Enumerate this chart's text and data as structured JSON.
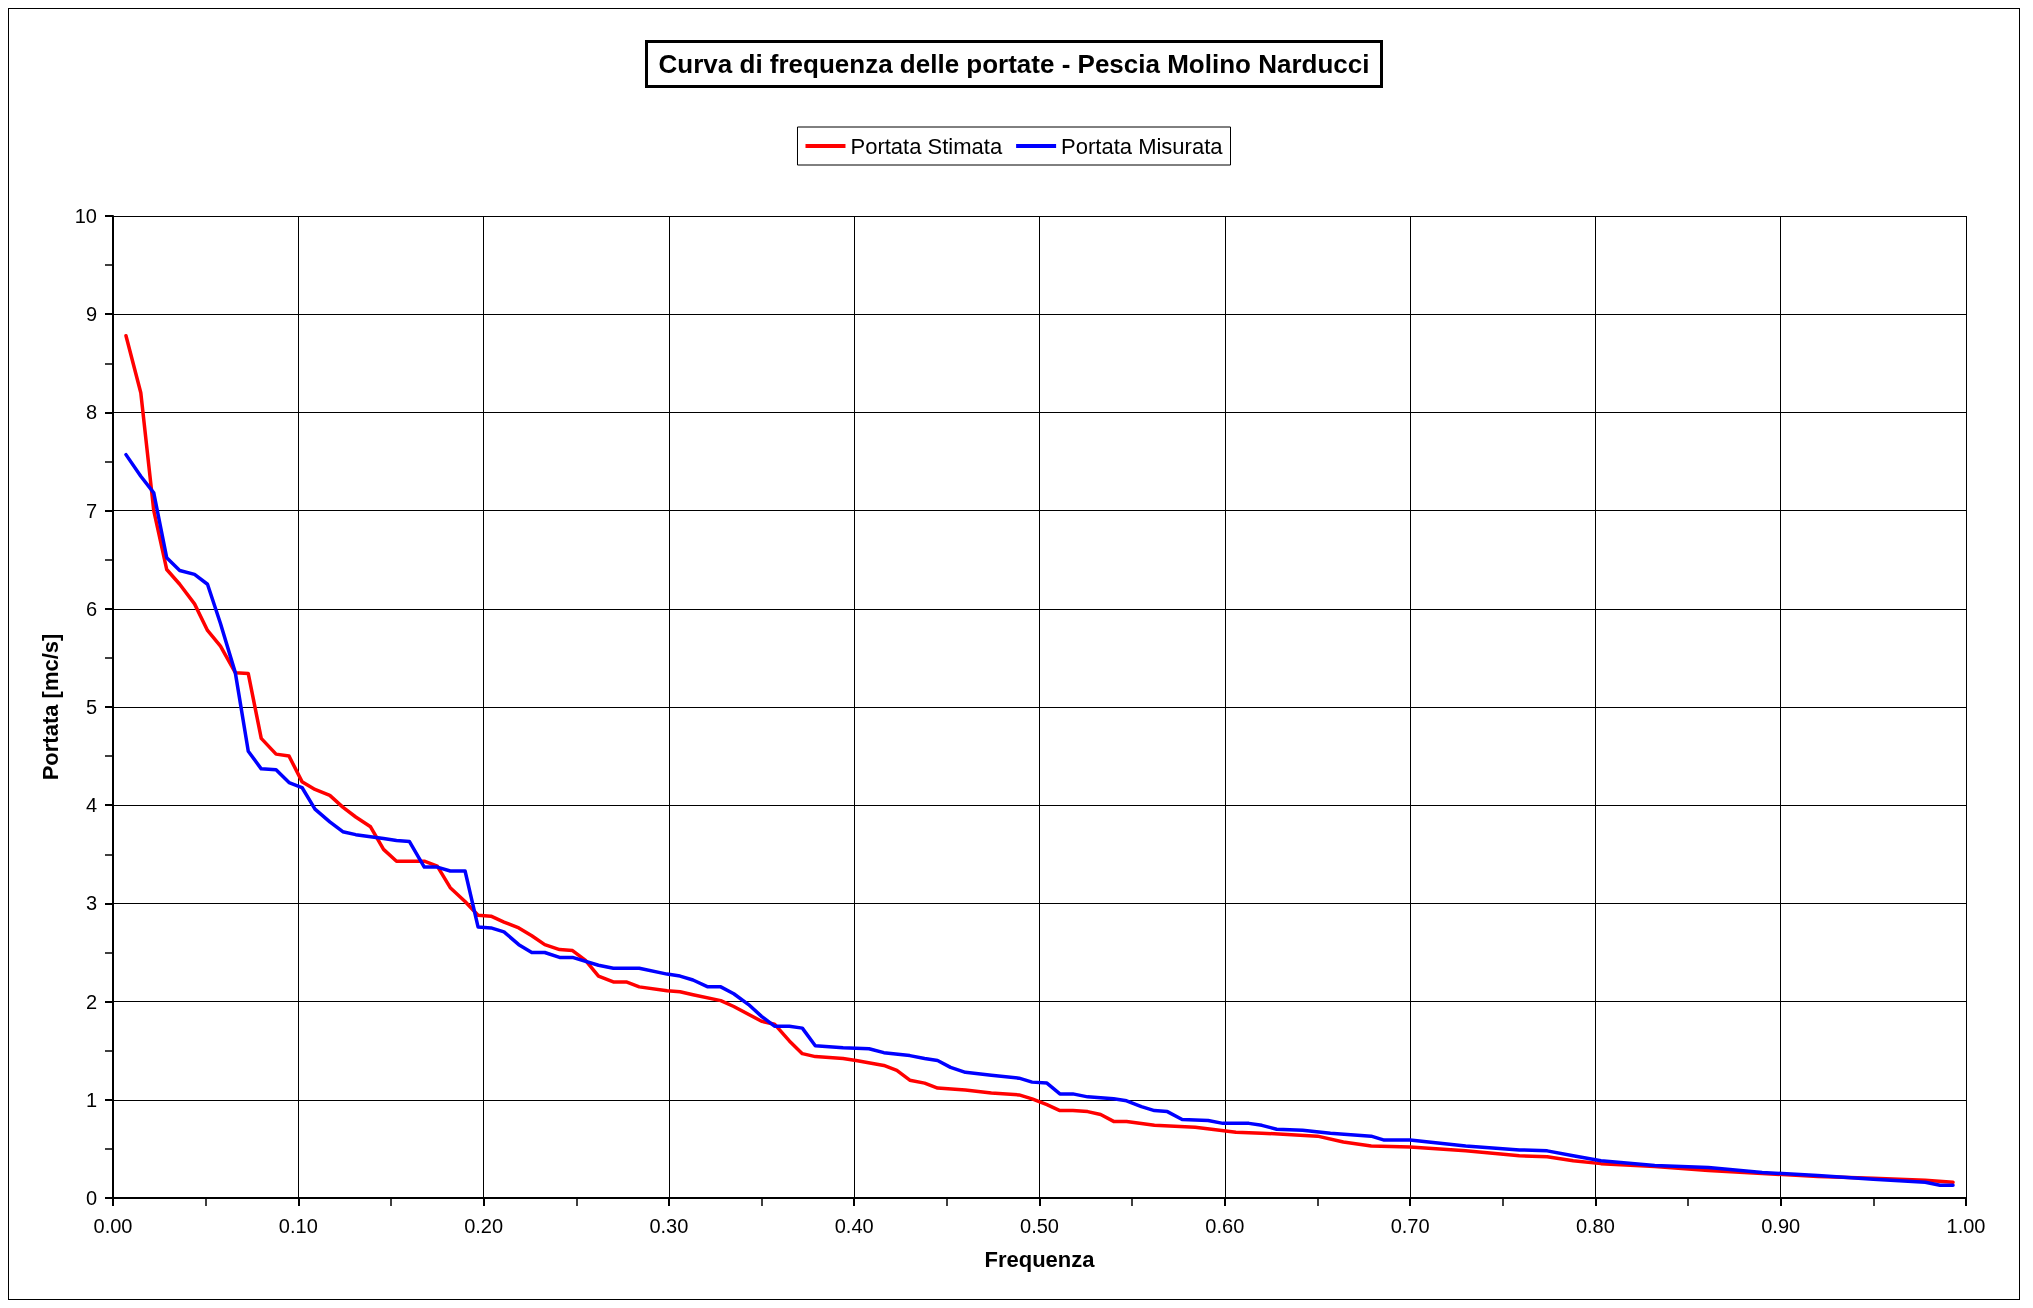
{
  "chart_data": {
    "type": "line",
    "title": "Curva di frequenza delle portate - Pescia Molino Narducci",
    "xlabel": "Frequenza",
    "ylabel": "Portata [mc/s]",
    "xlim": [
      0,
      1
    ],
    "xticks": [
      {
        "value": 0,
        "label": "0.00"
      },
      {
        "value": 0.1,
        "label": "0.10"
      },
      {
        "value": 0.2,
        "label": "0.20"
      },
      {
        "value": 0.3,
        "label": "0.30"
      },
      {
        "value": 0.4,
        "label": "0.40"
      },
      {
        "value": 0.5,
        "label": "0.50"
      },
      {
        "value": 0.6,
        "label": "0.60"
      },
      {
        "value": 0.7,
        "label": "0.70"
      },
      {
        "value": 0.8,
        "label": "0.80"
      },
      {
        "value": 0.9,
        "label": "0.90"
      },
      {
        "value": 1,
        "label": "1.00"
      }
    ],
    "ylim": [
      0,
      10
    ],
    "yticks": [
      0,
      1,
      2,
      3,
      4,
      5,
      6,
      7,
      8,
      9,
      10
    ],
    "grid": true,
    "legend": "top",
    "marker": "none",
    "line_style": "solid",
    "series": [
      {
        "name": "Portata Stimata",
        "color": "#ff0000",
        "x": [
          0.007,
          0.015,
          0.022,
          0.029,
          0.036,
          0.044,
          0.051,
          0.058,
          0.066,
          0.073,
          0.08,
          0.088,
          0.095,
          0.102,
          0.109,
          0.117,
          0.124,
          0.131,
          0.139,
          0.146,
          0.153,
          0.168,
          0.175,
          0.182,
          0.19,
          0.197,
          0.204,
          0.211,
          0.219,
          0.226,
          0.233,
          0.241,
          0.248,
          0.255,
          0.262,
          0.27,
          0.277,
          0.284,
          0.299,
          0.306,
          0.313,
          0.328,
          0.335,
          0.35,
          0.357,
          0.365,
          0.372,
          0.379,
          0.394,
          0.401,
          0.416,
          0.423,
          0.43,
          0.438,
          0.445,
          0.46,
          0.474,
          0.489,
          0.496,
          0.504,
          0.511,
          0.518,
          0.526,
          0.533,
          0.54,
          0.547,
          0.562,
          0.584,
          0.606,
          0.62,
          0.65,
          0.664,
          0.679,
          0.7,
          0.73,
          0.759,
          0.774,
          0.788,
          0.803,
          0.832,
          0.861,
          0.89,
          0.92,
          0.95,
          0.978,
          0.993
        ],
        "values": [
          8.78,
          8.2,
          7.0,
          6.4,
          6.25,
          6.05,
          5.78,
          5.62,
          5.35,
          5.34,
          4.68,
          4.52,
          4.5,
          4.24,
          4.16,
          4.1,
          3.98,
          3.88,
          3.78,
          3.55,
          3.43,
          3.43,
          3.38,
          3.16,
          3.02,
          2.88,
          2.87,
          2.81,
          2.75,
          2.67,
          2.58,
          2.53,
          2.52,
          2.42,
          2.26,
          2.2,
          2.2,
          2.15,
          2.11,
          2.1,
          2.07,
          2.01,
          1.95,
          1.8,
          1.77,
          1.6,
          1.47,
          1.44,
          1.42,
          1.4,
          1.35,
          1.3,
          1.2,
          1.17,
          1.12,
          1.1,
          1.07,
          1.05,
          1.01,
          0.95,
          0.89,
          0.89,
          0.88,
          0.85,
          0.78,
          0.78,
          0.74,
          0.72,
          0.67,
          0.66,
          0.63,
          0.57,
          0.53,
          0.52,
          0.48,
          0.43,
          0.42,
          0.38,
          0.35,
          0.32,
          0.28,
          0.25,
          0.22,
          0.2,
          0.18,
          0.16
        ]
      },
      {
        "name": "Portata Misurata",
        "color": "#0000ff",
        "x": [
          0.007,
          0.015,
          0.022,
          0.029,
          0.036,
          0.044,
          0.051,
          0.058,
          0.066,
          0.073,
          0.08,
          0.088,
          0.095,
          0.102,
          0.109,
          0.117,
          0.124,
          0.131,
          0.146,
          0.153,
          0.16,
          0.168,
          0.175,
          0.182,
          0.19,
          0.197,
          0.204,
          0.211,
          0.219,
          0.226,
          0.233,
          0.241,
          0.248,
          0.262,
          0.27,
          0.284,
          0.299,
          0.306,
          0.313,
          0.321,
          0.328,
          0.335,
          0.343,
          0.35,
          0.357,
          0.365,
          0.372,
          0.379,
          0.394,
          0.408,
          0.416,
          0.43,
          0.438,
          0.445,
          0.452,
          0.46,
          0.474,
          0.489,
          0.496,
          0.504,
          0.511,
          0.518,
          0.526,
          0.54,
          0.547,
          0.555,
          0.562,
          0.569,
          0.577,
          0.591,
          0.599,
          0.613,
          0.62,
          0.628,
          0.642,
          0.657,
          0.679,
          0.686,
          0.7,
          0.73,
          0.759,
          0.774,
          0.788,
          0.803,
          0.832,
          0.861,
          0.89,
          0.92,
          0.95,
          0.978,
          0.986,
          0.993
        ],
        "values": [
          7.57,
          7.35,
          7.18,
          6.52,
          6.39,
          6.35,
          6.25,
          5.85,
          5.35,
          4.55,
          4.37,
          4.36,
          4.23,
          4.18,
          3.96,
          3.83,
          3.73,
          3.7,
          3.66,
          3.64,
          3.63,
          3.37,
          3.37,
          3.33,
          3.33,
          2.76,
          2.75,
          2.71,
          2.58,
          2.5,
          2.5,
          2.45,
          2.45,
          2.37,
          2.34,
          2.34,
          2.28,
          2.26,
          2.22,
          2.15,
          2.15,
          2.08,
          1.97,
          1.85,
          1.75,
          1.75,
          1.73,
          1.55,
          1.53,
          1.52,
          1.48,
          1.45,
          1.42,
          1.4,
          1.33,
          1.28,
          1.25,
          1.22,
          1.18,
          1.17,
          1.06,
          1.06,
          1.03,
          1.01,
          0.99,
          0.93,
          0.89,
          0.88,
          0.8,
          0.79,
          0.76,
          0.76,
          0.74,
          0.7,
          0.69,
          0.66,
          0.63,
          0.59,
          0.59,
          0.53,
          0.49,
          0.48,
          0.43,
          0.38,
          0.33,
          0.31,
          0.26,
          0.23,
          0.19,
          0.16,
          0.13,
          0.13
        ]
      }
    ]
  }
}
